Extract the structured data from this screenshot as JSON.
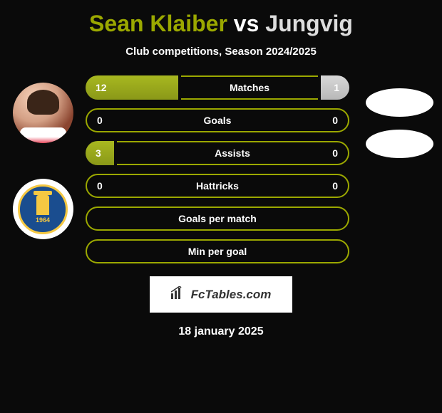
{
  "title": {
    "player1": "Sean Klaiber",
    "vs": "vs",
    "player2": "Jungvig"
  },
  "subtitle": "Club competitions, Season 2024/2025",
  "club": {
    "year": "1964"
  },
  "stats": [
    {
      "label": "Matches",
      "left_value": "12",
      "right_value": "1",
      "left_width": 130,
      "center_width": 180,
      "right_width": 40
    },
    {
      "label": "Goals",
      "left_value": "0",
      "right_value": "0",
      "left_width": 0,
      "center_width": 350,
      "right_width": 0
    },
    {
      "label": "Assists",
      "left_value": "3",
      "right_value": "0",
      "left_width": 40,
      "center_width": 310,
      "right_width": 0
    },
    {
      "label": "Hattricks",
      "left_value": "0",
      "right_value": "0",
      "left_width": 0,
      "center_width": 350,
      "right_width": 0
    },
    {
      "label": "Goals per match",
      "left_value": "",
      "right_value": "",
      "left_width": 0,
      "center_width": 350,
      "right_width": 0
    },
    {
      "label": "Min per goal",
      "left_value": "",
      "right_value": "",
      "left_width": 0,
      "center_width": 350,
      "right_width": 0
    }
  ],
  "colors": {
    "player1_accent": "#9ba800",
    "player2_accent": "#dddddd",
    "bar_left_bg": "#a8b820",
    "bar_right_bg": "#d8d8d8",
    "border_color": "#9ba800",
    "background": "#0a0a0a"
  },
  "branding": {
    "text": "FcTables.com"
  },
  "date": "18 january 2025"
}
